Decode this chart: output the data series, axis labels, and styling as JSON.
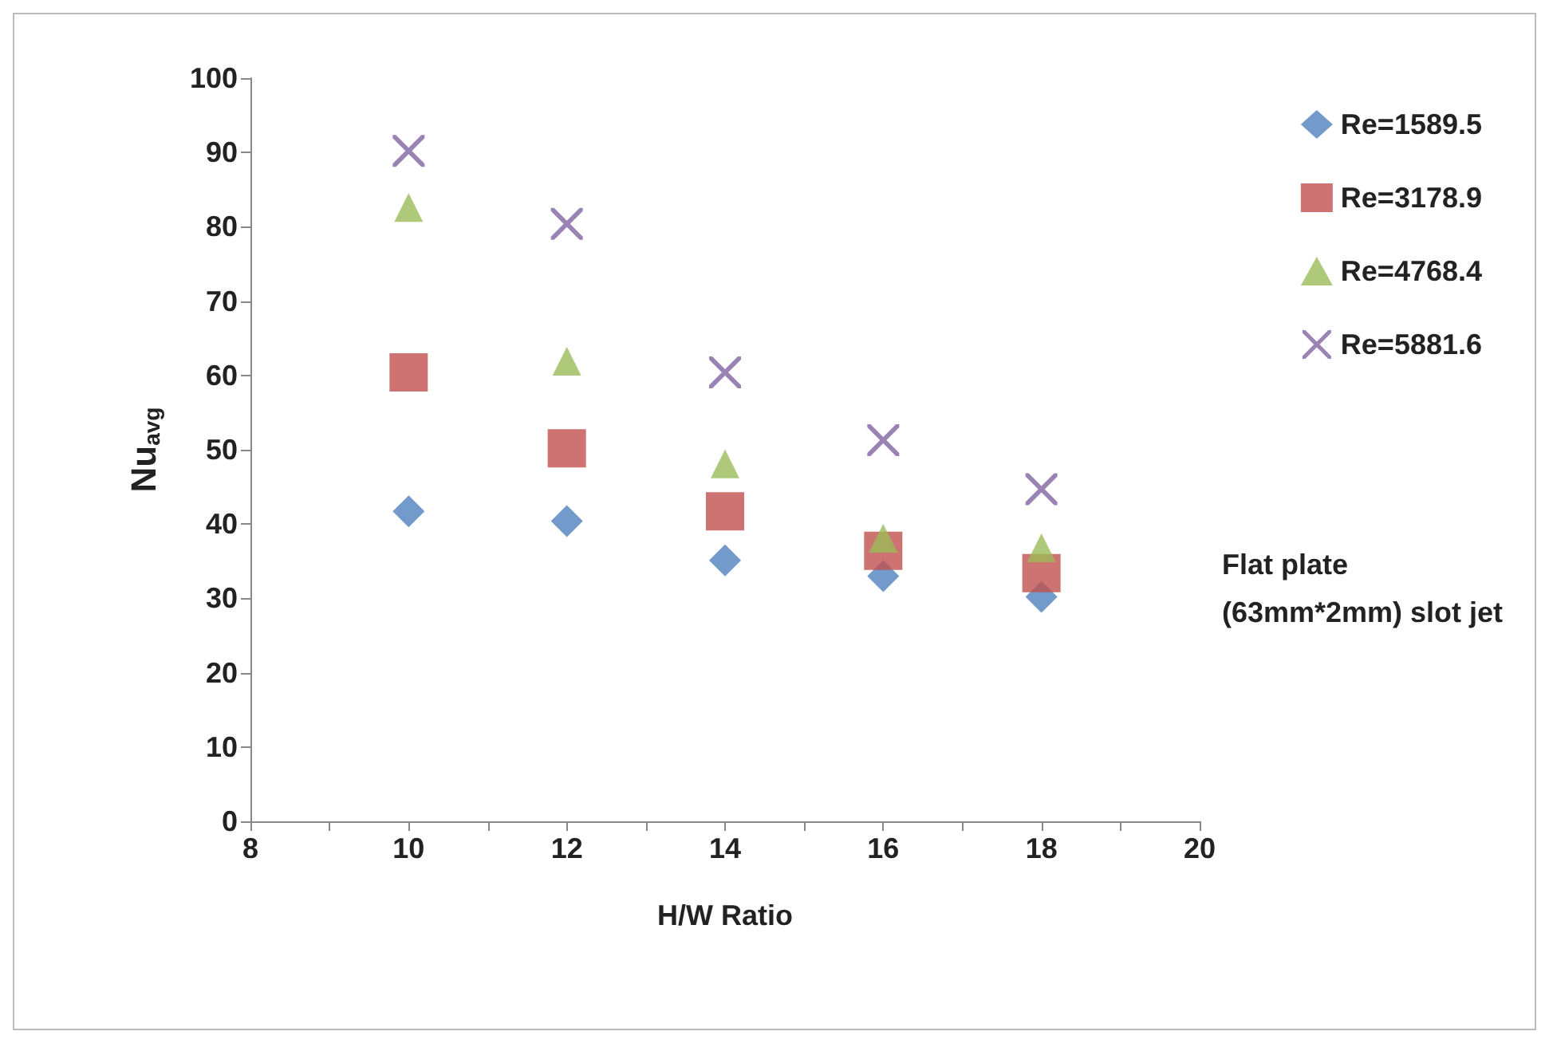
{
  "chart_data": {
    "type": "scatter",
    "xlabel": "H/W Ratio",
    "ylabel": "Nu$_{avg}$",
    "x": [
      10,
      12,
      14,
      16,
      18
    ],
    "series": [
      {
        "name": "Re=1589.5",
        "color": "#4f81bd",
        "marker": "diamond",
        "values": [
          41.7,
          40.4,
          35.1,
          33.0,
          30.2
        ]
      },
      {
        "name": "Re=3178.9",
        "color": "#c0504d",
        "marker": "square",
        "values": [
          60.4,
          50.2,
          41.7,
          36.4,
          33.4
        ]
      },
      {
        "name": "Re=4768.4",
        "color": "#9bbb59",
        "marker": "triangle",
        "values": [
          82.6,
          61.9,
          48.1,
          38.1,
          36.8
        ]
      },
      {
        "name": "Re=5881.6",
        "color": "#8064a2",
        "marker": "cross",
        "values": [
          90.2,
          80.4,
          60.4,
          51.3,
          44.7
        ]
      }
    ],
    "xlim": [
      8,
      20
    ],
    "xticks": [
      8,
      {
        "value": 9,
        "label": null
      },
      10,
      {
        "value": 11,
        "label": null
      },
      12,
      {
        "value": 13,
        "label": null
      },
      14,
      {
        "value": 15,
        "label": null
      },
      16,
      {
        "value": 17,
        "label": null
      },
      18,
      {
        "value": 19,
        "label": null
      },
      20
    ],
    "ylim": [
      0,
      100
    ],
    "yticks": [
      0,
      10,
      20,
      30,
      40,
      50,
      60,
      70,
      80,
      90,
      100
    ],
    "grid": false,
    "legend": "right",
    "annotations": [
      "Flat plate\n(63mm*2mm) slot jet"
    ]
  }
}
